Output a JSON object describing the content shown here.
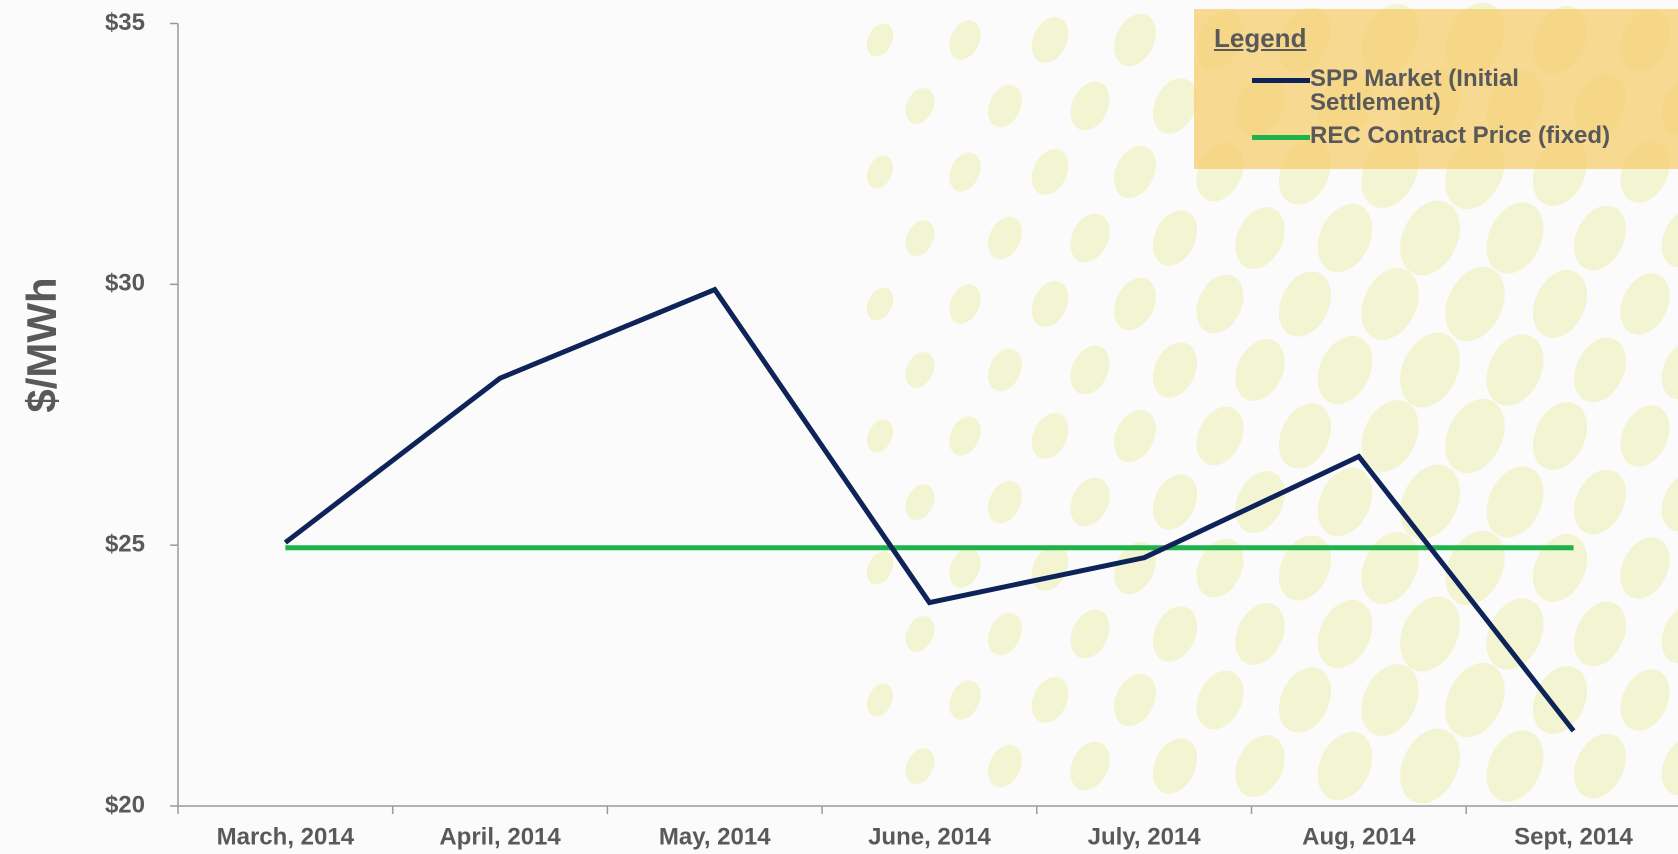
{
  "chart_data": {
    "type": "line",
    "y_label": "$/MWh",
    "categories": [
      "March, 2014",
      "April,  2014",
      "May, 2014",
      "June, 2014",
      "July, 2014",
      "Aug, 2014",
      "Sept, 2014"
    ],
    "series": [
      {
        "name": "SPP Market (Initial Settlement)",
        "color": "#0e2357",
        "values": [
          25.05,
          28.2,
          29.9,
          23.9,
          24.76,
          26.7,
          21.44
        ]
      },
      {
        "name": "REC Contract Price (fixed)",
        "color": "#1db24a",
        "values": [
          24.95,
          24.95,
          24.95,
          24.95,
          24.95,
          24.95,
          24.95
        ]
      }
    ],
    "ylim": [
      20,
      35
    ],
    "yticks": [
      {
        "value": 20,
        "label": "$20"
      },
      {
        "value": 25,
        "label": "$25"
      },
      {
        "value": 30,
        "label": "$30"
      },
      {
        "value": 35,
        "label": "$35"
      }
    ],
    "legend_title": "Legend",
    "legend_position": "upper right",
    "grid": false
  }
}
